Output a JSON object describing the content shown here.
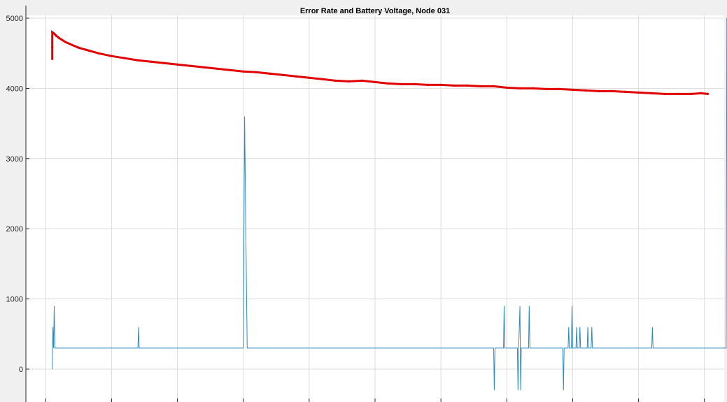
{
  "chart_data": {
    "type": "line",
    "title": "Error Rate and Battery Voltage, Node 031",
    "xlabel": "",
    "ylabel": "",
    "ylim": [
      -300,
      5000
    ],
    "xlim": [
      -3,
      103
    ],
    "y_ticks": [
      0,
      1000,
      2000,
      3000,
      4000,
      5000
    ],
    "y_tick_labels": [
      "0",
      "1000",
      "2000",
      "3000",
      "4000",
      "5000"
    ],
    "x_ticks": [
      0,
      10,
      20,
      30,
      40,
      50,
      60,
      70,
      80,
      90,
      100
    ],
    "grid": true,
    "colors": {
      "voltage": "#e00000",
      "error": "#2e8bc0",
      "grid": "#dcdcdc",
      "background": "#ffffff",
      "figure": "#f0f0f0"
    },
    "series": [
      {
        "style": "markers",
        "color": "#e00000",
        "x": [
          1.0,
          1.0,
          1.0,
          1.3,
          1.6,
          2.0,
          2.5,
          3.0,
          4.0,
          5.0,
          6.5,
          8.0,
          10.0,
          12.0,
          14.0,
          16.0,
          18.0,
          20.0,
          22.0,
          24.0,
          26.0,
          28.0,
          30.0,
          32.0,
          34.0,
          36.0,
          38.0,
          40.0,
          42.0,
          44.0,
          46.0,
          48.0,
          50.0,
          52.0,
          54.0,
          56.0,
          58.0,
          60.0,
          62.0,
          64.0,
          66.0,
          68.0,
          70.0,
          72.0,
          74.0,
          76.0,
          78.0,
          80.0,
          82.0,
          84.0,
          86.0,
          88.0,
          90.0,
          92.0,
          94.0,
          96.0,
          98.0,
          99.5,
          100.5
        ],
        "values": [
          4420,
          4590,
          4800,
          4780,
          4750,
          4720,
          4690,
          4660,
          4620,
          4580,
          4540,
          4500,
          4460,
          4430,
          4400,
          4380,
          4360,
          4340,
          4320,
          4300,
          4280,
          4260,
          4240,
          4230,
          4210,
          4190,
          4170,
          4150,
          4130,
          4110,
          4100,
          4110,
          4090,
          4070,
          4060,
          4060,
          4050,
          4050,
          4040,
          4040,
          4030,
          4030,
          4010,
          4000,
          4000,
          3990,
          3990,
          3980,
          3970,
          3960,
          3960,
          3950,
          3940,
          3930,
          3920,
          3920,
          3920,
          3930,
          3920
        ]
      },
      {
        "style": "line",
        "color": "#2e8bc0",
        "x": [
          1.0,
          1.1,
          1.2,
          1.3,
          1.4,
          1.5,
          1.6,
          2.0,
          14.0,
          14.1,
          14.2,
          14.3,
          30.0,
          30.2,
          30.4,
          30.6,
          30.8,
          68.0,
          68.1,
          68.2,
          69.5,
          69.6,
          69.7,
          71.6,
          71.7,
          71.8,
          72.0,
          72.1,
          72.2,
          72.4,
          73.3,
          73.4,
          73.5,
          78.5,
          78.6,
          78.7,
          79.3,
          79.4,
          79.5,
          79.8,
          79.9,
          80.0,
          80.5,
          80.6,
          80.7,
          81.0,
          81.1,
          81.2,
          82.2,
          82.3,
          82.4,
          82.8,
          82.9,
          83.0,
          92.0,
          92.1,
          92.2,
          103.3,
          103.4,
          103.5
        ],
        "values": [
          0,
          600,
          300,
          900,
          300,
          300,
          300,
          300,
          300,
          600,
          300,
          300,
          300,
          3600,
          1800,
          300,
          300,
          300,
          -300,
          300,
          300,
          900,
          300,
          300,
          -300,
          300,
          900,
          -300,
          300,
          300,
          300,
          900,
          300,
          300,
          -300,
          300,
          300,
          600,
          300,
          300,
          900,
          300,
          300,
          600,
          300,
          300,
          600,
          300,
          300,
          600,
          300,
          300,
          600,
          300,
          300,
          600,
          300,
          300,
          5000,
          5000
        ]
      }
    ]
  }
}
